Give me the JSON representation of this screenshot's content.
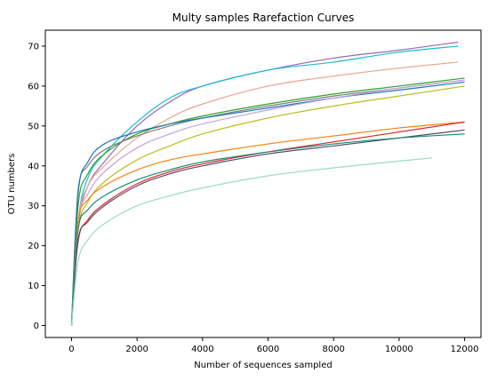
{
  "chart_data": {
    "type": "line",
    "title": "Multy samples Rarefaction Curves",
    "xlabel": "Number of sequences sampled",
    "ylabel": "OTU numbers",
    "xlim": [
      -800,
      12500
    ],
    "ylim": [
      -3,
      74
    ],
    "xticks": [
      0,
      2000,
      4000,
      6000,
      8000,
      10000,
      12000
    ],
    "yticks": [
      0,
      10,
      20,
      30,
      40,
      50,
      60,
      70
    ],
    "grid": false,
    "legend": "none",
    "series": [
      {
        "color": "#9467bd",
        "x": [
          0,
          200,
          500,
          1000,
          2000,
          3000,
          4000,
          6000,
          8000,
          10000,
          11800
        ],
        "y": [
          0,
          25,
          35,
          41,
          50,
          56,
          60,
          64,
          67,
          69,
          71
        ]
      },
      {
        "color": "#17becf",
        "x": [
          0,
          200,
          500,
          1000,
          2000,
          3000,
          4000,
          6000,
          8000,
          10000,
          11800
        ],
        "y": [
          0,
          26,
          37,
          43,
          51,
          57,
          60,
          64,
          66,
          68.5,
          70
        ]
      },
      {
        "color": "#e8a58f",
        "x": [
          0,
          200,
          500,
          1000,
          2000,
          3000,
          4000,
          6000,
          8000,
          10000,
          11800
        ],
        "y": [
          0,
          26,
          35,
          40,
          47,
          52,
          55.5,
          60,
          62.5,
          64.5,
          66
        ]
      },
      {
        "color": "#2ca02c",
        "x": [
          0,
          200,
          500,
          1000,
          2000,
          3000,
          4000,
          6000,
          8000,
          10000,
          12000
        ],
        "y": [
          0,
          30,
          38,
          43,
          48,
          50.5,
          52.5,
          55.5,
          58,
          60,
          62
        ]
      },
      {
        "color": "#7f7f7f",
        "x": [
          0,
          200,
          500,
          1000,
          2000,
          3000,
          4000,
          6000,
          8000,
          10000,
          12000
        ],
        "y": [
          0,
          34,
          40,
          44,
          47.5,
          50,
          52,
          55,
          57.5,
          59.5,
          61.5
        ]
      },
      {
        "color": "#bcbd22",
        "x": [
          0,
          200,
          500,
          1000,
          2000,
          3000,
          4000,
          6000,
          8000,
          10000,
          12000
        ],
        "y": [
          0,
          24,
          31,
          36,
          41.5,
          45,
          48,
          52,
          55,
          57.5,
          60
        ]
      },
      {
        "color": "#1f77b4",
        "x": [
          0,
          200,
          500,
          1000,
          2000,
          3000,
          4000,
          6000,
          8000,
          10000,
          12000
        ],
        "y": [
          0,
          33,
          41,
          45.5,
          48.5,
          50.5,
          52,
          54.5,
          57,
          59,
          61
        ]
      },
      {
        "color": "#c9a0dc",
        "x": [
          0,
          200,
          500,
          1000,
          2000,
          3000,
          4000,
          6000,
          8000,
          10000,
          12000
        ],
        "y": [
          0,
          26,
          33,
          38.5,
          44.5,
          48,
          50.5,
          54,
          57,
          59.5,
          61.5
        ]
      },
      {
        "color": "#ff7f0e",
        "x": [
          0,
          200,
          500,
          1000,
          2000,
          3000,
          4000,
          6000,
          8000,
          10000,
          12000
        ],
        "y": [
          0,
          26,
          31.5,
          35,
          39,
          41.5,
          43,
          45.5,
          47.5,
          49.5,
          51
        ]
      },
      {
        "color": "#d62728",
        "x": [
          0,
          200,
          500,
          1000,
          2000,
          3000,
          4000,
          6000,
          8000,
          10000,
          12000
        ],
        "y": [
          0,
          21,
          26.5,
          30.5,
          35.5,
          38.5,
          40.5,
          43.5,
          46,
          48.5,
          51
        ]
      },
      {
        "color": "#5b4a6b",
        "x": [
          0,
          200,
          500,
          1000,
          2000,
          3000,
          4000,
          6000,
          8000,
          10000,
          12000
        ],
        "y": [
          0,
          21.5,
          26,
          30,
          35,
          38,
          40,
          43,
          45,
          47,
          49
        ]
      },
      {
        "color": "#138d75",
        "x": [
          0,
          200,
          500,
          1000,
          2000,
          3000,
          4000,
          6000,
          8000,
          10000,
          12000
        ],
        "y": [
          0,
          24,
          29,
          32.5,
          36.5,
          39,
          41,
          43.5,
          45.5,
          47,
          48
        ]
      },
      {
        "color": "#98dbc6",
        "x": [
          0,
          200,
          500,
          1000,
          2000,
          3000,
          4000,
          6000,
          8000,
          10000,
          11000
        ],
        "y": [
          0,
          16,
          21.5,
          25.5,
          30,
          32.5,
          34.5,
          37.5,
          39.5,
          41.2,
          42
        ]
      }
    ]
  }
}
